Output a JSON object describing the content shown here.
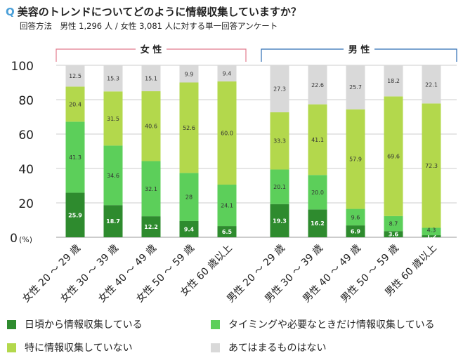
{
  "title": {
    "q_mark": "Q",
    "text": "美容のトレンドについてどのように情報収集していますか？"
  },
  "subtitle": "回答方法　男性 1,296 人 / 女性 3,081 人に対する単一回答アンケート",
  "chart_data": {
    "type": "bar",
    "stacked": true,
    "title": "美容のトレンドについてどのように情報収集していますか？",
    "ylabel": "(%)",
    "ylim": [
      0,
      100
    ],
    "yticks": [
      0,
      20,
      40,
      60,
      80,
      100
    ],
    "grid": true,
    "legend_position": "bottom",
    "groups": [
      {
        "label": "女 性",
        "color": "#e27b8e",
        "categories": [
          "女性 20 ～ 29 歳",
          "女性 30 ～ 39 歳",
          "女性 40 ～ 49 歳",
          "女性 50 ～ 59 歳",
          "女性 60 歳以上"
        ]
      },
      {
        "label": "男 性",
        "color": "#2e6db4",
        "categories": [
          "男性 20 ～ 29 歳",
          "男性 30 ～ 39 歳",
          "男性 40 ～ 49 歳",
          "男性 50 ～ 59 歳",
          "男性 60 歳以上"
        ]
      }
    ],
    "categories": [
      "女性 20 ～ 29 歳",
      "女性 30 ～ 39 歳",
      "女性 40 ～ 49 歳",
      "女性 50 ～ 59 歳",
      "女性 60 歳以上",
      "男性 20 ～ 29 歳",
      "男性 30 ～ 39 歳",
      "男性 40 ～ 49 歳",
      "男性 50 ～ 59 歳",
      "男性 60 歳以上"
    ],
    "series": [
      {
        "name": "日頃から情報収集している",
        "color": "#2e8b2e",
        "label_color": "#ffffff",
        "values": [
          "25.9",
          "18.7",
          "12.2",
          "9.4",
          "6.5",
          "19.3",
          "16.2",
          "6.9",
          "3.6",
          "1.2"
        ]
      },
      {
        "name": "タイミングや必要なときだけ情報収集している",
        "color": "#5ccf5a",
        "label_color": "#333333",
        "values": [
          "41.3",
          "34.6",
          "32.1",
          "28",
          "24.1",
          "20.1",
          "20.0",
          "9.6",
          "8.7",
          "4.3"
        ]
      },
      {
        "name": "特に情報収集していない",
        "color": "#b3d84c",
        "label_color": "#333333",
        "values": [
          "20.4",
          "31.5",
          "40.6",
          "52.6",
          "60.0",
          "33.3",
          "41.1",
          "57.9",
          "69.6",
          "72.3"
        ]
      },
      {
        "name": "あてはまるものはない",
        "color": "#d9d9d9",
        "label_color": "#333333",
        "values": [
          "12.5",
          "15.3",
          "15.1",
          "9.9",
          "9.4",
          "27.3",
          "22.6",
          "25.7",
          "18.2",
          "22.1"
        ]
      }
    ]
  }
}
